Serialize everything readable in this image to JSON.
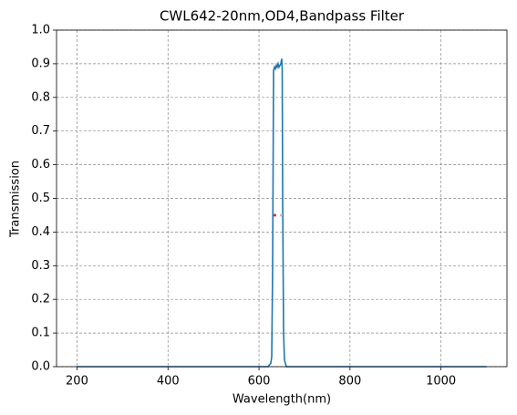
{
  "chart_data": {
    "type": "line",
    "title": "CWL642-20nm,OD4,Bandpass Filter",
    "x_label": "Wavelength(nm)",
    "y_label": "Transmission",
    "series": [
      {
        "color": "#1f77b4",
        "x": [
          200,
          620,
          626,
          628,
          630,
          632,
          634,
          636,
          638,
          640,
          642,
          644,
          646,
          648,
          650,
          651,
          652,
          654,
          656,
          660,
          1100
        ],
        "values": [
          0,
          0,
          0.01,
          0.03,
          0.3,
          0.88,
          0.89,
          0.885,
          0.895,
          0.89,
          0.9,
          0.89,
          0.895,
          0.9,
          0.915,
          0.88,
          0.5,
          0.1,
          0.02,
          0,
          0
        ]
      }
    ],
    "markers": [
      {
        "x": 635,
        "y": 0.45,
        "color": "#d62728"
      },
      {
        "x": 649,
        "y": 0.45,
        "color": "#bbbbbb"
      }
    ],
    "xlim": [
      155,
      1145
    ],
    "ylim": [
      0,
      1
    ],
    "xticks": [
      200,
      400,
      600,
      800,
      1000
    ],
    "yticks": [
      {
        "value": 0,
        "label": "0.0"
      },
      0.1,
      0.2,
      0.3,
      0.4,
      0.5,
      0.6,
      0.7,
      0.8,
      0.9,
      {
        "value": 1,
        "label": "1.0"
      }
    ],
    "grid": true
  }
}
